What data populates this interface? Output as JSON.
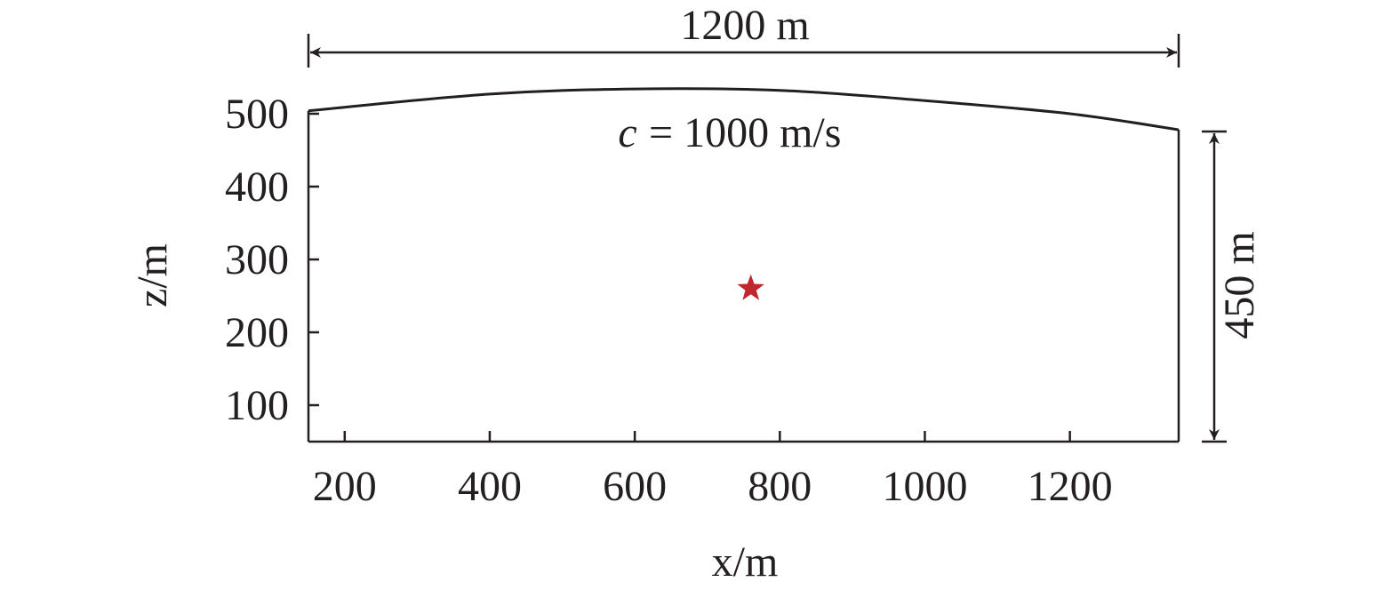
{
  "chart_data": {
    "type": "line",
    "top_dimension": "1200 m",
    "right_dimension": "450 m",
    "annotation_symbol": "c",
    "annotation": "= 1000 m/s",
    "xlabel": "x/m",
    "ylabel": "z/m",
    "xlim": [
      150,
      1350
    ],
    "ylim": [
      50,
      550
    ],
    "xticks": [
      200,
      400,
      600,
      800,
      1000,
      1200
    ],
    "yticks": [
      100,
      200,
      300,
      400,
      500
    ],
    "series": [
      {
        "x": [
          150,
          400,
          600,
          800,
          1000,
          1200,
          1350
        ],
        "values": [
          504,
          527,
          534,
          532,
          518,
          500,
          478
        ],
        "color": "#231f20"
      }
    ],
    "source": {
      "x": 760,
      "y": 260,
      "color": "#c0272d"
    }
  }
}
